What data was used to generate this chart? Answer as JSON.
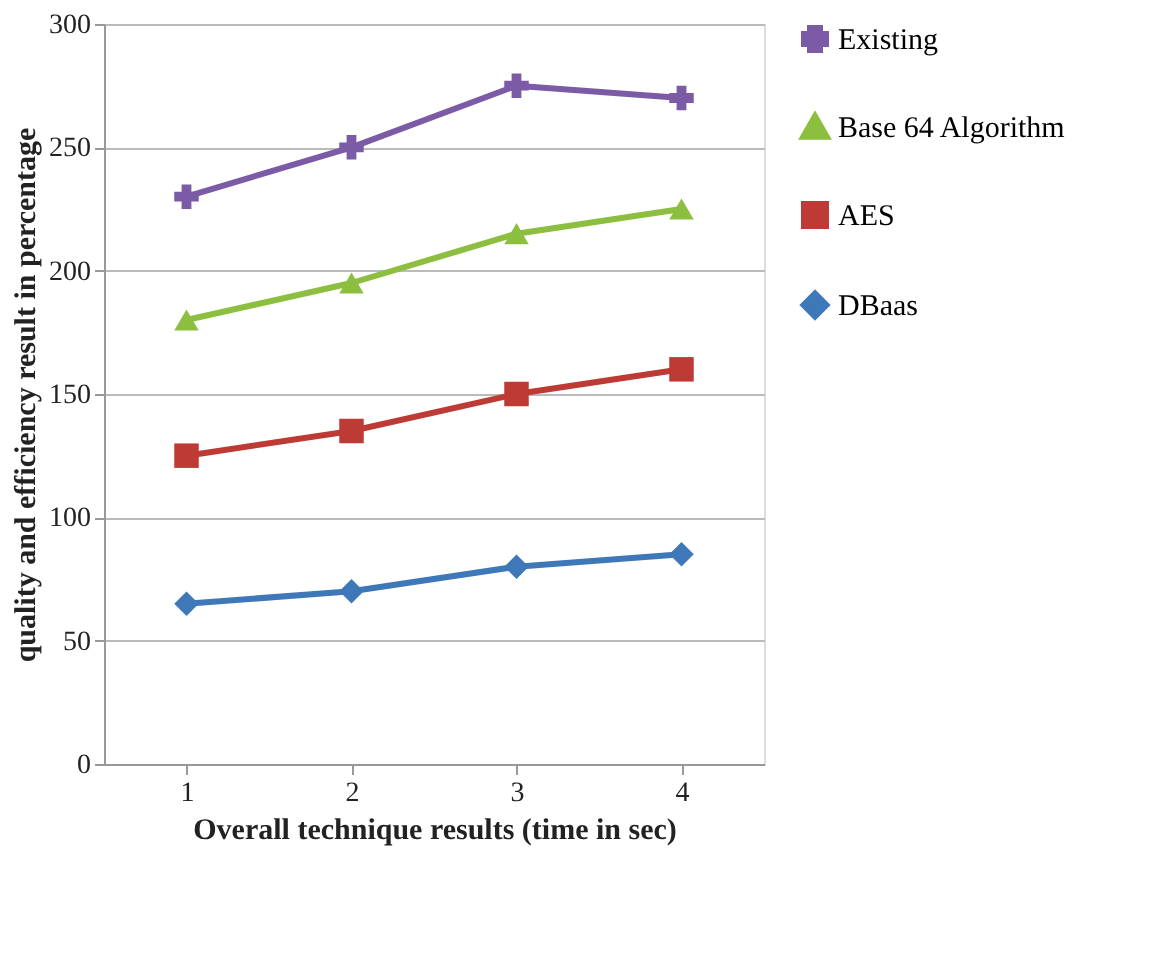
{
  "chart_data": {
    "type": "line",
    "xlabel": "Overall technique results (time in sec)",
    "ylabel": "quality and efficiency result in percentage",
    "categories": [
      "1",
      "2",
      "3",
      "4"
    ],
    "series": [
      {
        "name": "Existing",
        "color": "#7b5aa6",
        "marker": "cross",
        "values": [
          230,
          250,
          275,
          270
        ]
      },
      {
        "name": "Base 64 Algorithm",
        "color": "#8cbf3f",
        "marker": "triangle",
        "values": [
          180,
          195,
          215,
          225
        ]
      },
      {
        "name": "AES",
        "color": "#be3a34",
        "marker": "square",
        "values": [
          125,
          135,
          150,
          160
        ]
      },
      {
        "name": "DBaas",
        "color": "#3f78b8",
        "marker": "diamond",
        "values": [
          65,
          70,
          80,
          85
        ]
      }
    ],
    "ylim": [
      0,
      300
    ],
    "yticks": [
      0,
      50,
      100,
      150,
      200,
      250,
      300
    ],
    "grid": "y",
    "legend": "right",
    "line_style": "solid"
  }
}
